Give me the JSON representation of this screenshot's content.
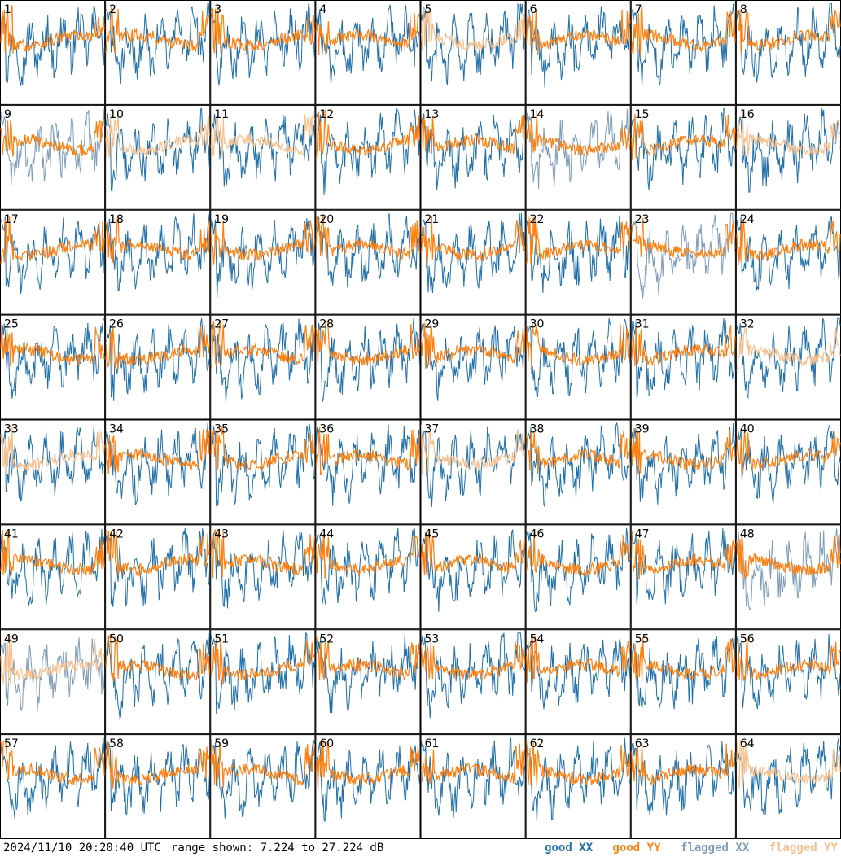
{
  "chart_data": {
    "type": "line",
    "layout": "8x8 small multiples of antenna spectra",
    "panels": [
      "1",
      "2",
      "3",
      "4",
      "5",
      "6",
      "7",
      "8",
      "9",
      "10",
      "11",
      "12",
      "13",
      "14",
      "15",
      "16",
      "17",
      "18",
      "19",
      "20",
      "21",
      "22",
      "23",
      "24",
      "25",
      "26",
      "27",
      "28",
      "29",
      "30",
      "31",
      "32",
      "33",
      "34",
      "35",
      "36",
      "37",
      "38",
      "39",
      "40",
      "41",
      "42",
      "43",
      "44",
      "45",
      "46",
      "47",
      "48",
      "49",
      "50",
      "51",
      "52",
      "53",
      "54",
      "55",
      "56",
      "57",
      "58",
      "59",
      "60",
      "61",
      "62",
      "63",
      "64"
    ],
    "ylim": [
      7.224,
      27.224
    ],
    "y_unit": "dB",
    "grid": false,
    "legend_placement": "bottom-right",
    "series": [
      {
        "name": "good XX",
        "color": "#1f6fa8"
      },
      {
        "name": "good YY",
        "color": "#ff7f0e"
      },
      {
        "name": "flagged XX",
        "color": "#7f9db8"
      },
      {
        "name": "flagged YY",
        "color": "#f7bf8c"
      }
    ],
    "flagged_panels": {
      "xx": [
        "9",
        "14",
        "23",
        "48",
        "49"
      ],
      "yy": [
        "5",
        "10",
        "11",
        "16",
        "32",
        "33",
        "37",
        "49",
        "64"
      ]
    }
  },
  "footer": {
    "timestamp": "2024/11/10 20:20:40 UTC",
    "range_text": "range shown: 7.224 to 27.224 dB",
    "legend": {
      "good_xx": "good XX",
      "good_yy": "good YY",
      "flagged_xx": "flagged XX",
      "flagged_yy": "flagged YY"
    }
  }
}
